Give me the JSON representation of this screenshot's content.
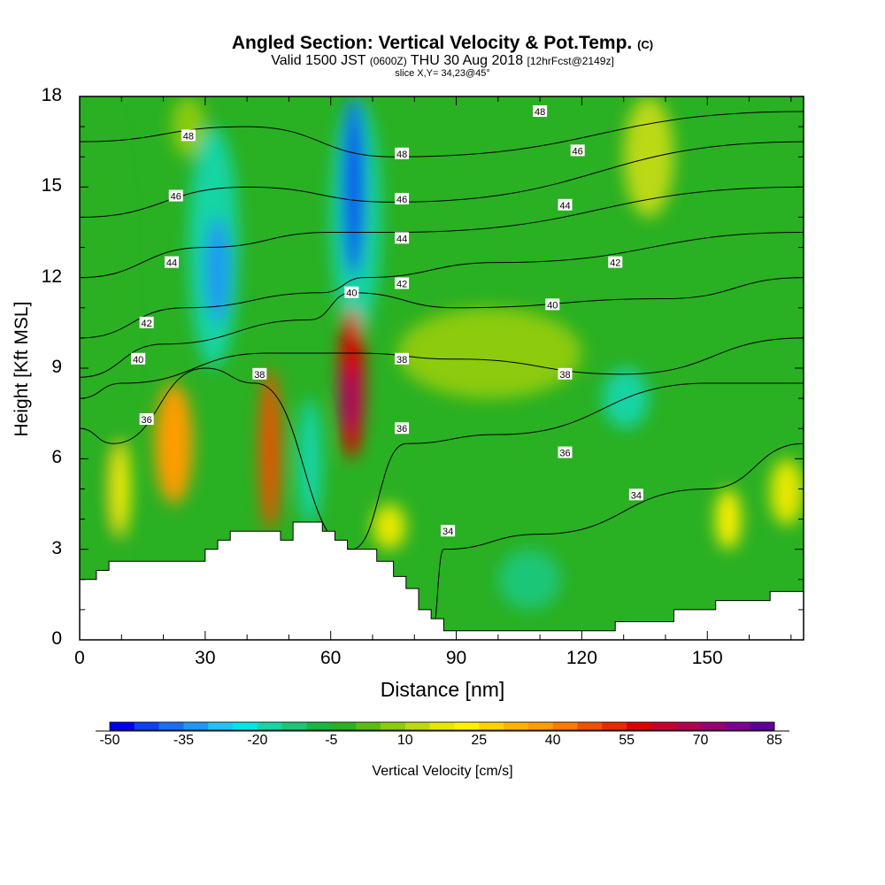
{
  "header": {
    "title": "Angled Section: Vertical Velocity & Pot.Temp.",
    "title_unit": "(C)",
    "valid_prefix": "Valid 1500 JST",
    "valid_utc": "(0600Z)",
    "valid_date": "THU 30 Aug 2018",
    "forecast": "[12hrFcst@2149z]",
    "slice": "slice X,Y= 34,23@45°"
  },
  "chart_data": {
    "type": "heatmap",
    "title": "Angled Section: Vertical Velocity & Pot.Temp.",
    "xlabel": "Distance [nm]",
    "ylabel": "Height [Kft MSL]",
    "xlim": [
      0,
      173
    ],
    "ylim": [
      0,
      18
    ],
    "xticks": [
      0,
      30,
      60,
      90,
      120,
      150
    ],
    "yticks": [
      0,
      3,
      6,
      9,
      12,
      15,
      18
    ],
    "colorbar": {
      "label": "Vertical Velocity [cm/s]",
      "ticks": [
        "-50",
        "-35",
        "-20",
        "-5",
        "10",
        "25",
        "40",
        "55",
        "70",
        "85"
      ],
      "min": -50,
      "max": 85,
      "step": 5,
      "colors": [
        "#0000ee",
        "#1040f0",
        "#1a6ff2",
        "#1e98f2",
        "#20c4f4",
        "#00e6e6",
        "#18d4a4",
        "#1cc677",
        "#19b545",
        "#2ab023",
        "#5cbc13",
        "#8ccb0d",
        "#bcd912",
        "#e6e800",
        "#fff000",
        "#ffd200",
        "#ffb400",
        "#ff9c00",
        "#ff7a00",
        "#f05000",
        "#e82a00",
        "#dd0000",
        "#c80030",
        "#b40050",
        "#980070",
        "#7e0090",
        "#60009a"
      ]
    },
    "velocity_cells": [
      {
        "x0": 0,
        "x1": 12,
        "y0": 0,
        "y1": 18,
        "value": -5
      },
      {
        "x0": 8,
        "x1": 12,
        "y0": 3.5,
        "y1": 6.5,
        "value": 20
      },
      {
        "x0": 18,
        "x1": 27,
        "y0": 4.5,
        "y1": 8.5,
        "value": 35
      },
      {
        "x0": 22,
        "x1": 30,
        "y0": 16,
        "y1": 18,
        "value": 5
      },
      {
        "x0": 26,
        "x1": 38,
        "y0": 9,
        "y1": 17,
        "value": -20
      },
      {
        "x0": 30,
        "x1": 36,
        "y0": 10.5,
        "y1": 14,
        "value": -35
      },
      {
        "x0": 43,
        "x1": 48,
        "y0": 3.6,
        "y1": 9,
        "value": 45
      },
      {
        "x0": 52,
        "x1": 58,
        "y0": 3.8,
        "y1": 8,
        "value": -20
      },
      {
        "x0": 60,
        "x1": 72,
        "y0": 10,
        "y1": 18,
        "value": -20
      },
      {
        "x0": 63,
        "x1": 68,
        "y0": 12,
        "y1": 18,
        "value": -45
      },
      {
        "x0": 62,
        "x1": 68,
        "y0": 6,
        "y1": 11,
        "value": 55
      },
      {
        "x0": 63,
        "x1": 66,
        "y0": 7,
        "y1": 9,
        "value": 70
      },
      {
        "x0": 70,
        "x1": 78,
        "y0": 3,
        "y1": 4.5,
        "value": 15
      },
      {
        "x0": 76,
        "x1": 120,
        "y0": 8,
        "y1": 11,
        "value": 5
      },
      {
        "x0": 100,
        "x1": 115,
        "y0": 1,
        "y1": 3,
        "value": -15
      },
      {
        "x0": 125,
        "x1": 136,
        "y0": 7,
        "y1": 9,
        "value": -20
      },
      {
        "x0": 130,
        "x1": 142,
        "y0": 14,
        "y1": 18,
        "value": 10
      },
      {
        "x0": 152,
        "x1": 158,
        "y0": 3,
        "y1": 5,
        "value": 20
      },
      {
        "x0": 165,
        "x1": 173,
        "y0": 3.8,
        "y1": 6,
        "value": 15
      }
    ],
    "terrain": [
      [
        0,
        2
      ],
      [
        4,
        2
      ],
      [
        4,
        2.3
      ],
      [
        7,
        2.3
      ],
      [
        7,
        2.6
      ],
      [
        30,
        2.6
      ],
      [
        30,
        3
      ],
      [
        33,
        3
      ],
      [
        33,
        3.3
      ],
      [
        36,
        3.3
      ],
      [
        36,
        3.6
      ],
      [
        48,
        3.6
      ],
      [
        48,
        3.3
      ],
      [
        51,
        3.3
      ],
      [
        51,
        3.9
      ],
      [
        58,
        3.9
      ],
      [
        58,
        3.6
      ],
      [
        61,
        3.6
      ],
      [
        61,
        3.3
      ],
      [
        64,
        3.3
      ],
      [
        64,
        3
      ],
      [
        71,
        3
      ],
      [
        71,
        2.6
      ],
      [
        75,
        2.6
      ],
      [
        75,
        2.1
      ],
      [
        78,
        2.1
      ],
      [
        78,
        1.7
      ],
      [
        81,
        1.7
      ],
      [
        81,
        1
      ],
      [
        84,
        1
      ],
      [
        84,
        0.7
      ],
      [
        87,
        0.7
      ],
      [
        87,
        0.3
      ],
      [
        128,
        0.3
      ],
      [
        128,
        0.6
      ],
      [
        142,
        0.6
      ],
      [
        142,
        1
      ],
      [
        152,
        1
      ],
      [
        152,
        1.3
      ],
      [
        165,
        1.3
      ],
      [
        165,
        1.6
      ],
      [
        173,
        1.6
      ]
    ],
    "isentropes": [
      {
        "value": "34",
        "points": [
          [
            84,
            0
          ],
          [
            87,
            3
          ],
          [
            110,
            3.5
          ],
          [
            150,
            5
          ],
          [
            173,
            6.5
          ]
        ]
      },
      {
        "value": "36",
        "points": [
          [
            0,
            7
          ],
          [
            8,
            6.5
          ],
          [
            30,
            9
          ],
          [
            42,
            8.5
          ],
          [
            65,
            3
          ],
          [
            78,
            6.5
          ],
          [
            100,
            6.8
          ],
          [
            150,
            8.5
          ],
          [
            173,
            8.5
          ]
        ]
      },
      {
        "value": "38",
        "points": [
          [
            0,
            8
          ],
          [
            10,
            8.5
          ],
          [
            45,
            9.5
          ],
          [
            66,
            9.5
          ],
          [
            90,
            9.3
          ],
          [
            130,
            8.8
          ],
          [
            173,
            10
          ]
        ]
      },
      {
        "value": "40",
        "points": [
          [
            0,
            8.7
          ],
          [
            20,
            9.8
          ],
          [
            55,
            10.6
          ],
          [
            65,
            11.5
          ],
          [
            90,
            11
          ],
          [
            140,
            11.3
          ],
          [
            173,
            12
          ]
        ]
      },
      {
        "value": "42",
        "points": [
          [
            0,
            10
          ],
          [
            25,
            11
          ],
          [
            58,
            11.5
          ],
          [
            68,
            12
          ],
          [
            100,
            12.5
          ],
          [
            173,
            13.5
          ]
        ]
      },
      {
        "value": "44",
        "points": [
          [
            0,
            12
          ],
          [
            30,
            13
          ],
          [
            60,
            13.5
          ],
          [
            75,
            13.5
          ],
          [
            173,
            15
          ]
        ]
      },
      {
        "value": "46",
        "points": [
          [
            0,
            14
          ],
          [
            40,
            15
          ],
          [
            75,
            14.5
          ],
          [
            173,
            16.5
          ]
        ]
      },
      {
        "value": "48",
        "points": [
          [
            0,
            16.5
          ],
          [
            40,
            17
          ],
          [
            75,
            16
          ],
          [
            173,
            17.5
          ]
        ]
      }
    ],
    "contour_labels": [
      {
        "text": "48",
        "x": 26,
        "y": 16.7
      },
      {
        "text": "46",
        "x": 23,
        "y": 14.7
      },
      {
        "text": "44",
        "x": 22,
        "y": 12.5
      },
      {
        "text": "42",
        "x": 16,
        "y": 10.5
      },
      {
        "text": "40",
        "x": 14,
        "y": 9.3
      },
      {
        "text": "36",
        "x": 16,
        "y": 7.3
      },
      {
        "text": "38",
        "x": 43,
        "y": 8.8
      },
      {
        "text": "40",
        "x": 65,
        "y": 11.5
      },
      {
        "text": "48",
        "x": 77,
        "y": 16.1
      },
      {
        "text": "46",
        "x": 77,
        "y": 14.6
      },
      {
        "text": "44",
        "x": 77,
        "y": 13.3
      },
      {
        "text": "42",
        "x": 77,
        "y": 11.8
      },
      {
        "text": "38",
        "x": 77,
        "y": 9.3
      },
      {
        "text": "36",
        "x": 77,
        "y": 7
      },
      {
        "text": "34",
        "x": 88,
        "y": 3.6
      },
      {
        "text": "48",
        "x": 110,
        "y": 17.5
      },
      {
        "text": "46",
        "x": 119,
        "y": 16.2
      },
      {
        "text": "44",
        "x": 116,
        "y": 14.4
      },
      {
        "text": "42",
        "x": 128,
        "y": 12.5
      },
      {
        "text": "40",
        "x": 113,
        "y": 11.1
      },
      {
        "text": "38",
        "x": 116,
        "y": 8.8
      },
      {
        "text": "36",
        "x": 116,
        "y": 6.2
      },
      {
        "text": "34",
        "x": 133,
        "y": 4.8
      }
    ]
  }
}
